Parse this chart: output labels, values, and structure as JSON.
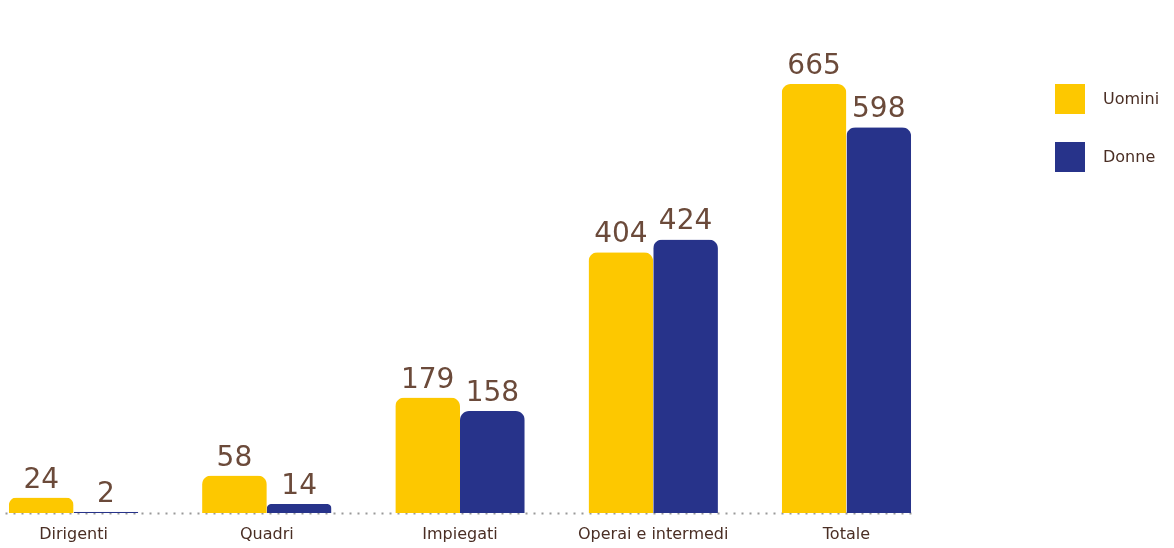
{
  "chart_data": {
    "type": "bar",
    "categories": [
      "Dirigenti",
      "Quadri",
      "Impiegati",
      "Operai\ne intermedi",
      "Totale"
    ],
    "series": [
      {
        "name": "Uomini",
        "color": "#fdc800",
        "values": [
          24,
          58,
          179,
          404,
          665
        ]
      },
      {
        "name": "Donne",
        "color": "#27338a",
        "values": [
          2,
          14,
          158,
          424,
          598
        ]
      }
    ],
    "data_labels": true,
    "legend": "right",
    "grid": false
  }
}
